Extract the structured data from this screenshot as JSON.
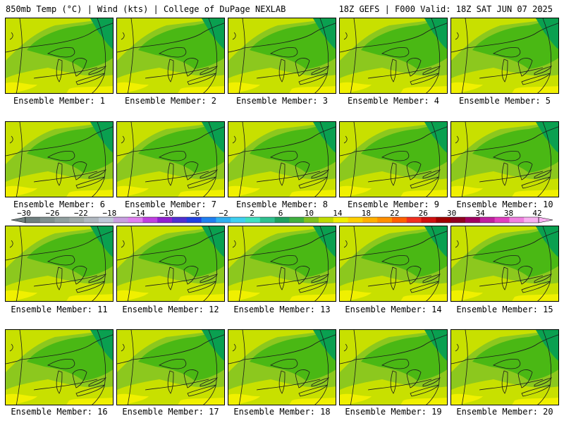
{
  "header": {
    "left": "850mb Temp (°C) | Wind (kts) | College of DuPage NEXLAB",
    "right": "18Z GEFS | F000 Valid: 18Z SAT JUN 07 2025"
  },
  "members": [
    "Ensemble Member: 1",
    "Ensemble Member: 2",
    "Ensemble Member: 3",
    "Ensemble Member: 4",
    "Ensemble Member: 5",
    "Ensemble Member: 6",
    "Ensemble Member: 7",
    "Ensemble Member: 8",
    "Ensemble Member: 9",
    "Ensemble Member: 10",
    "Ensemble Member: 11",
    "Ensemble Member: 12",
    "Ensemble Member: 13",
    "Ensemble Member: 14",
    "Ensemble Member: 15",
    "Ensemble Member: 16",
    "Ensemble Member: 17",
    "Ensemble Member: 18",
    "Ensemble Member: 19",
    "Ensemble Member: 20"
  ],
  "colorbar": {
    "labels": [
      "−30",
      "−26",
      "−22",
      "−18",
      "−14",
      "−10",
      "−6",
      "−2",
      "2",
      "6",
      "10",
      "14",
      "18",
      "22",
      "26",
      "30",
      "34",
      "38",
      "42"
    ],
    "colors": [
      "#6f7f7f",
      "#7f8f8f",
      "#909f9f",
      "#a0aaaa",
      "#b0b8c0",
      "#c0c8d8",
      "#c8a0e0",
      "#e080f0",
      "#c040e0",
      "#9020d0",
      "#5030d0",
      "#2040e0",
      "#2080f0",
      "#30b0f0",
      "#40d0f0",
      "#40e0c0",
      "#30c090",
      "#20a060",
      "#40b040",
      "#80c020",
      "#c0dc00",
      "#f0f000",
      "#ffd000",
      "#ffb000",
      "#ff9000",
      "#ff6000",
      "#f03020",
      "#d01010",
      "#a00000",
      "#900020",
      "#a00060",
      "#c020a0",
      "#e040c0",
      "#f080e0",
      "#f8b0f0"
    ]
  },
  "fill_colors": {
    "cool": "#0aa050",
    "mid": "#4ab814",
    "mild": "#8cc81e",
    "warm": "#c8e000",
    "hot": "#f0f000"
  }
}
